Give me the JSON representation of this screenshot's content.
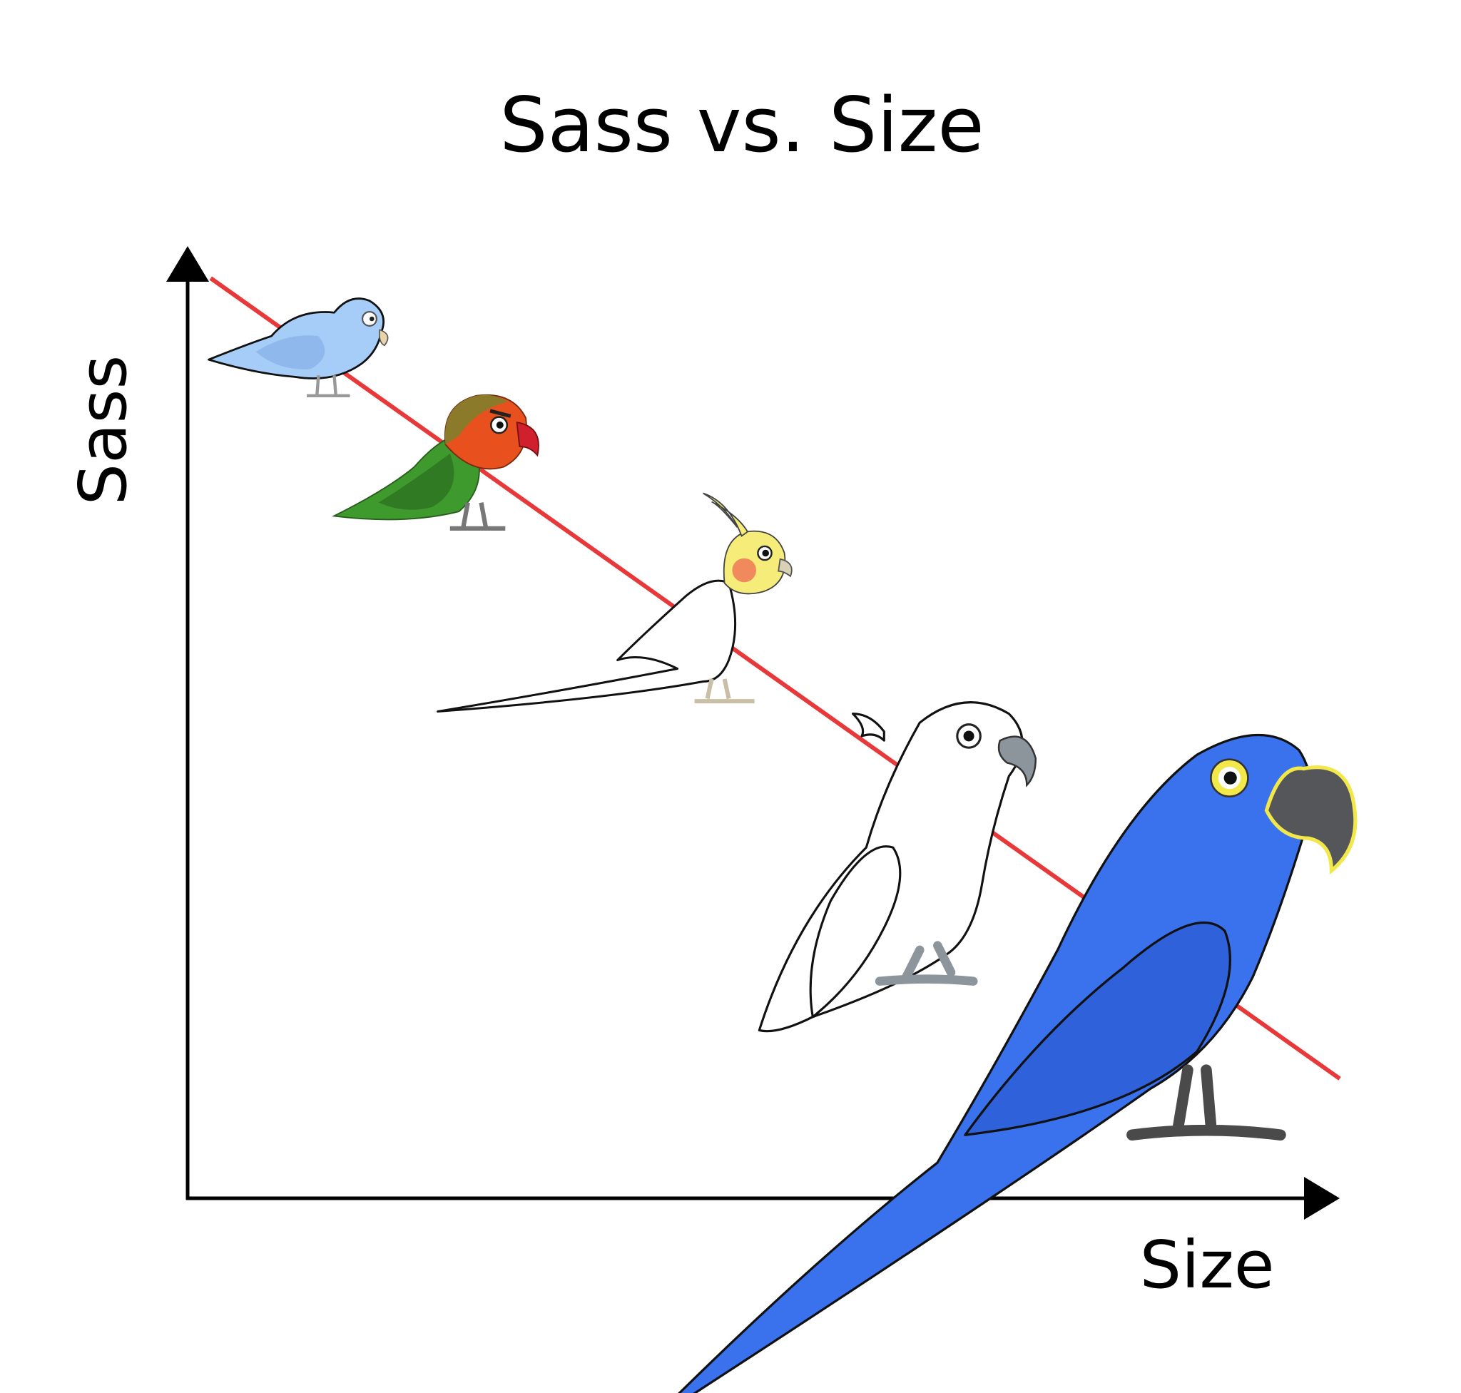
{
  "chart_data": {
    "type": "scatter",
    "title": "Sass vs. Size",
    "xlabel": "Size",
    "ylabel": "Sass",
    "xlim": [
      0,
      100
    ],
    "ylim": [
      0,
      100
    ],
    "grid": false,
    "ticks": false,
    "trendline": {
      "x": [
        2,
        100
      ],
      "y": [
        100,
        13
      ],
      "color": "#E8393A"
    },
    "points": [
      {
        "icon": "parrotlet-icon",
        "x": 10,
        "y": 92,
        "color": "#9DC8F5"
      },
      {
        "icon": "lovebird-icon",
        "x": 22,
        "y": 79,
        "color": "#3E9A2C"
      },
      {
        "icon": "cockatiel-icon",
        "x": 44,
        "y": 65,
        "color": "#F6EC7A"
      },
      {
        "icon": "cockatoo-icon",
        "x": 62,
        "y": 42,
        "color": "#FFFFFF"
      },
      {
        "icon": "hyacinth-macaw-icon",
        "x": 86,
        "y": 22,
        "color": "#3A72EE"
      }
    ],
    "colors": {
      "axis": "#000000",
      "trendline": "#E8393A",
      "background": "#FFFFFF"
    }
  }
}
